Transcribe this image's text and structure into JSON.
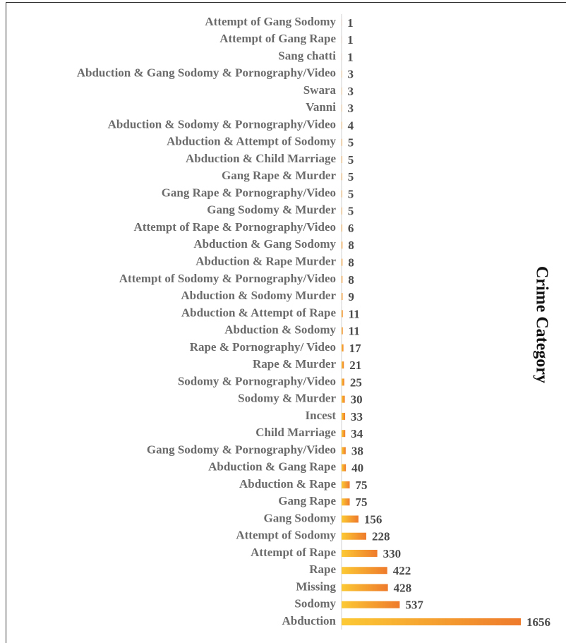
{
  "chart_data": {
    "type": "barh",
    "axis_label": "Crime Category",
    "categories": [
      "Attempt of Gang Sodomy",
      "Attempt of Gang Rape",
      "Sang chatti",
      "Abduction & Gang Sodomy & Pornography/Video",
      "Swara",
      "Vanni",
      "Abduction & Sodomy & Pornography/Video",
      "Abduction & Attempt of Sodomy",
      "Abduction & Child Marriage",
      "Gang Rape & Murder",
      "Gang Rape & Pornography/Video",
      "Gang Sodomy & Murder",
      "Attempt of Rape & Pornography/Video",
      "Abduction & Gang Sodomy",
      "Abduction & Rape Murder",
      "Attempt of Sodomy & Pornography/Video",
      "Abduction & Sodomy Murder",
      "Abduction & Attempt of Rape",
      "Abduction & Sodomy",
      "Rape & Pornography/ Video",
      "Rape & Murder",
      "Sodomy & Pornography/Video",
      "Sodomy & Murder",
      "Incest",
      "Child Marriage",
      "Gang Sodomy & Pornography/Video",
      "Abduction & Gang Rape",
      "Abduction & Rape",
      "Gang Rape",
      "Gang Sodomy",
      "Attempt of Sodomy",
      "Attempt of Rape",
      "Rape",
      "Missing",
      "Sodomy",
      "Abduction"
    ],
    "values": [
      1,
      1,
      1,
      3,
      3,
      3,
      4,
      5,
      5,
      5,
      5,
      5,
      6,
      8,
      8,
      8,
      9,
      11,
      11,
      17,
      21,
      25,
      30,
      33,
      34,
      38,
      40,
      75,
      75,
      156,
      228,
      330,
      422,
      428,
      537,
      1656
    ],
    "gradient": [
      "#fcc934",
      "#ee7a2c"
    ]
  }
}
